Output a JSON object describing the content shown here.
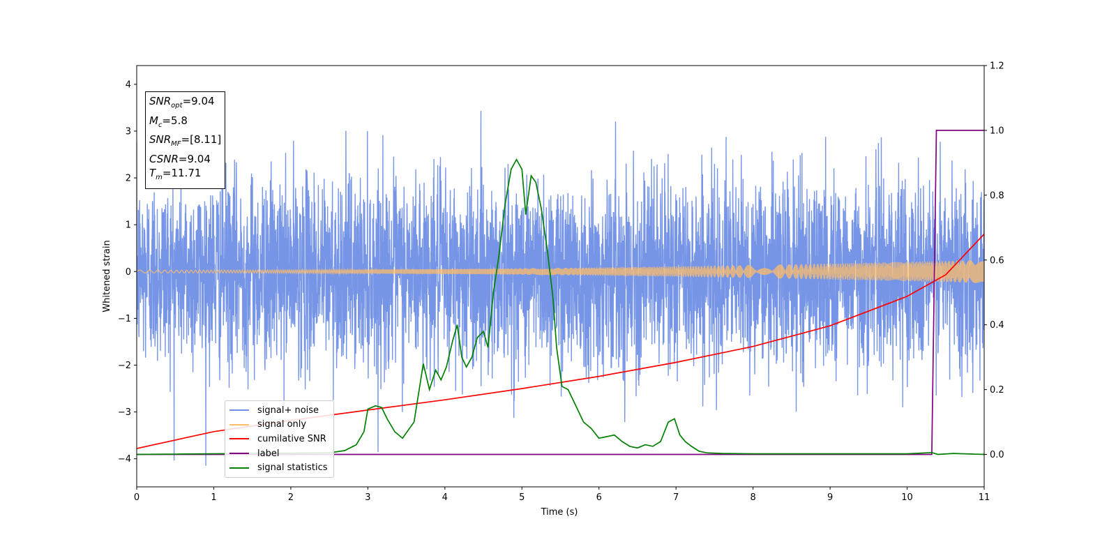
{
  "chart_data": {
    "type": "line",
    "title": "",
    "xlabel": "Time (s)",
    "ylabel": "Whitened strain",
    "xlim": [
      0,
      11
    ],
    "ylim": [
      -4.6,
      4.4
    ],
    "y2lim": [
      -0.1,
      1.2
    ],
    "x_ticks": [
      "0",
      "1",
      "2",
      "3",
      "4",
      "5",
      "6",
      "7",
      "8",
      "9",
      "10",
      "11"
    ],
    "y_ticks": [
      "4",
      "3",
      "2",
      "1",
      "0",
      "−1",
      "−2",
      "−3",
      "−4"
    ],
    "y2_ticks": [
      "1.2",
      "1.0",
      "0.8",
      "0.6",
      "0.4",
      "0.2",
      "0.0"
    ],
    "grid": false,
    "legend_position": "lower-left",
    "info_box": {
      "snr_opt": "=9.04",
      "mc": "=5.8",
      "snr_mf": "=[8.11]",
      "csnr": "=9.04",
      "tm": "=11.71"
    },
    "series": [
      {
        "name": "signal+ noise",
        "color": "#6f8fe6",
        "axis": "left",
        "noise_sigma": 1.0,
        "y_range": [
          -4.15,
          4.0
        ],
        "note_type": "dense-noise"
      },
      {
        "name": "signal only",
        "color": "#ffbe6a",
        "axis": "left",
        "amplitude_start": 0.03,
        "amplitude_end": 0.25,
        "note_type": "chirp"
      },
      {
        "name": "cumilative SNR",
        "color": "#ff0000",
        "axis": "left",
        "x": [
          0,
          1,
          2,
          3,
          4,
          5,
          6,
          7,
          8,
          9,
          10,
          10.5,
          11
        ],
        "y": [
          -3.78,
          -3.42,
          -3.18,
          -2.96,
          -2.74,
          -2.5,
          -2.24,
          -1.94,
          -1.6,
          -1.16,
          -0.53,
          -0.07,
          0.8
        ]
      },
      {
        "name": "label",
        "color": "#800080",
        "axis": "right",
        "x": [
          0,
          10.32,
          10.38,
          11
        ],
        "y": [
          0,
          0,
          1,
          1
        ]
      },
      {
        "name": "signal statistics",
        "color": "#008000",
        "axis": "right",
        "x": [
          0,
          2.5,
          2.7,
          2.85,
          2.95,
          3.0,
          3.1,
          3.18,
          3.25,
          3.35,
          3.45,
          3.6,
          3.72,
          3.8,
          3.88,
          3.95,
          4.02,
          4.1,
          4.16,
          4.22,
          4.28,
          4.35,
          4.42,
          4.5,
          4.56,
          4.63,
          4.7,
          4.78,
          4.86,
          4.93,
          5.0,
          5.05,
          5.12,
          5.18,
          5.25,
          5.33,
          5.4,
          5.45,
          5.52,
          5.6,
          5.7,
          5.8,
          5.9,
          6.0,
          6.1,
          6.2,
          6.3,
          6.4,
          6.5,
          6.6,
          6.7,
          6.8,
          6.9,
          6.98,
          7.05,
          7.12,
          7.2,
          7.3,
          7.4,
          7.6,
          8.0,
          9.0,
          10.0,
          10.32,
          10.4,
          10.6,
          11.0
        ],
        "y": [
          0.0,
          0.005,
          0.012,
          0.03,
          0.07,
          0.14,
          0.15,
          0.145,
          0.11,
          0.07,
          0.05,
          0.1,
          0.28,
          0.2,
          0.26,
          0.23,
          0.27,
          0.35,
          0.4,
          0.3,
          0.27,
          0.3,
          0.36,
          0.38,
          0.33,
          0.5,
          0.61,
          0.77,
          0.88,
          0.91,
          0.88,
          0.74,
          0.86,
          0.84,
          0.76,
          0.63,
          0.49,
          0.33,
          0.21,
          0.2,
          0.15,
          0.1,
          0.08,
          0.05,
          0.055,
          0.06,
          0.04,
          0.025,
          0.02,
          0.03,
          0.025,
          0.04,
          0.1,
          0.11,
          0.06,
          0.04,
          0.025,
          0.01,
          0.005,
          0.003,
          0.002,
          0.002,
          0.002,
          0.006,
          0.0,
          0.003,
          0.0
        ]
      }
    ]
  }
}
